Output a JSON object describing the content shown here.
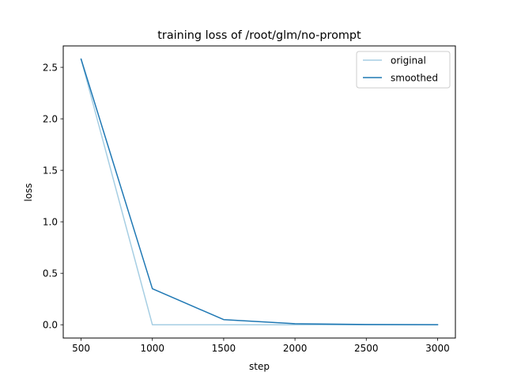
{
  "chart_data": {
    "type": "line",
    "title": "training loss of /root/glm/no-prompt",
    "xlabel": "step",
    "ylabel": "loss",
    "xlim": [
      375,
      3125
    ],
    "ylim": [
      -0.129,
      2.708
    ],
    "xticks": [
      500,
      1000,
      1500,
      2000,
      2500,
      3000
    ],
    "yticks": [
      0.0,
      0.5,
      1.0,
      1.5,
      2.0,
      2.5
    ],
    "xtick_labels": [
      "500",
      "1000",
      "1500",
      "2000",
      "2500",
      "3000"
    ],
    "ytick_labels": [
      "0.0",
      "0.5",
      "1.0",
      "1.5",
      "2.0",
      "2.5"
    ],
    "grid": false,
    "legend_position": "upper right",
    "series": [
      {
        "name": "original",
        "color": "#a6cee3",
        "x": [
          500,
          1000,
          1500,
          2000,
          2500,
          3000
        ],
        "y": [
          2.58,
          0.0,
          0.0,
          0.0,
          0.0,
          0.0
        ]
      },
      {
        "name": "smoothed",
        "color": "#1f78b4",
        "x": [
          500,
          1000,
          1500,
          2000,
          2500,
          3000
        ],
        "y": [
          2.58,
          0.35,
          0.05,
          0.01,
          0.003,
          0.001
        ]
      }
    ]
  }
}
